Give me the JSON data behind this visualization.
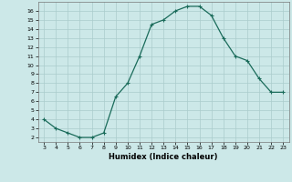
{
  "x": [
    3,
    4,
    5,
    6,
    7,
    8,
    9,
    10,
    11,
    12,
    13,
    14,
    15,
    16,
    17,
    18,
    19,
    20,
    21,
    22,
    23
  ],
  "y": [
    4,
    3,
    2.5,
    2,
    2,
    2.5,
    6.5,
    8,
    11,
    14.5,
    15,
    16,
    16.5,
    16.5,
    15.5,
    13,
    11,
    10.5,
    8.5,
    7,
    7
  ],
  "xlabel": "Humidex (Indice chaleur)",
  "line_color": "#1a6b5a",
  "bg_color": "#cce8e8",
  "grid_color": "#aacccc",
  "xlim": [
    2.5,
    23.5
  ],
  "ylim": [
    1.5,
    17.0
  ],
  "xticks": [
    3,
    4,
    5,
    6,
    7,
    8,
    9,
    10,
    11,
    12,
    13,
    14,
    15,
    16,
    17,
    18,
    19,
    20,
    21,
    22,
    23
  ],
  "yticks": [
    2,
    3,
    4,
    5,
    6,
    7,
    8,
    9,
    10,
    11,
    12,
    13,
    14,
    15,
    16
  ]
}
